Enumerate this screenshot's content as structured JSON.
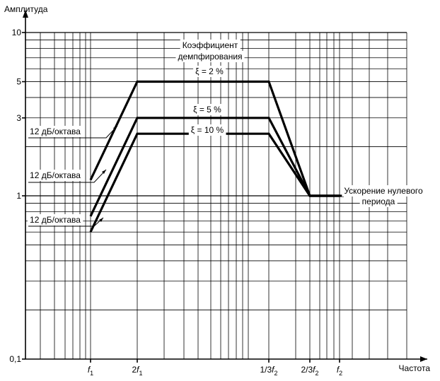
{
  "chart_data": {
    "type": "line",
    "ylabel": "Амплитуда",
    "xlabel": "Частота",
    "yscale": "log",
    "xscale": "log",
    "ylim": [
      0.1,
      10
    ],
    "y_ticks": [
      {
        "value": 10,
        "label": "10"
      },
      {
        "value": 5,
        "label": "5"
      },
      {
        "value": 3,
        "label": "3"
      },
      {
        "value": 1,
        "label": "1"
      },
      {
        "value": 0.1,
        "label": "0,1"
      }
    ],
    "x_ticks": [
      {
        "key": "f1",
        "base": "f",
        "sub": "1",
        "prefix": ""
      },
      {
        "key": "2f1",
        "base": "f",
        "sub": "1",
        "prefix": "2"
      },
      {
        "key": "f2_3",
        "base": "f",
        "sub": "2",
        "prefix": "1/3"
      },
      {
        "key": "2f2_3",
        "base": "f",
        "sub": "2",
        "prefix": "2/3"
      },
      {
        "key": "f2",
        "base": "f",
        "sub": "2",
        "prefix": ""
      }
    ],
    "series": [
      {
        "name": "ξ = 2 %",
        "points": [
          [
            "f1",
            1.25
          ],
          [
            "2f1",
            5
          ],
          [
            "f2_3",
            5
          ],
          [
            "2f2_3",
            1
          ],
          [
            "f2",
            1
          ]
        ]
      },
      {
        "name": "ξ = 5 %",
        "points": [
          [
            "f1",
            0.75
          ],
          [
            "2f1",
            3
          ],
          [
            "f2_3",
            3
          ],
          [
            "2f2_3",
            1
          ],
          [
            "f2",
            1
          ]
        ]
      },
      {
        "name": "ξ = 10 %",
        "points": [
          [
            "f1",
            0.6
          ],
          [
            "2f1",
            2.4
          ],
          [
            "f2_3",
            2.4
          ],
          [
            "2f2_3",
            1
          ],
          [
            "f2",
            1
          ]
        ]
      }
    ],
    "annotations": {
      "damping_title_line1": "Коэффициент",
      "damping_title_line2": "демпфирования",
      "slope_label": "12 дБ/октава",
      "zpa_line1": "Ускорение нулевого",
      "zpa_line2": "периода"
    },
    "grid": true
  }
}
